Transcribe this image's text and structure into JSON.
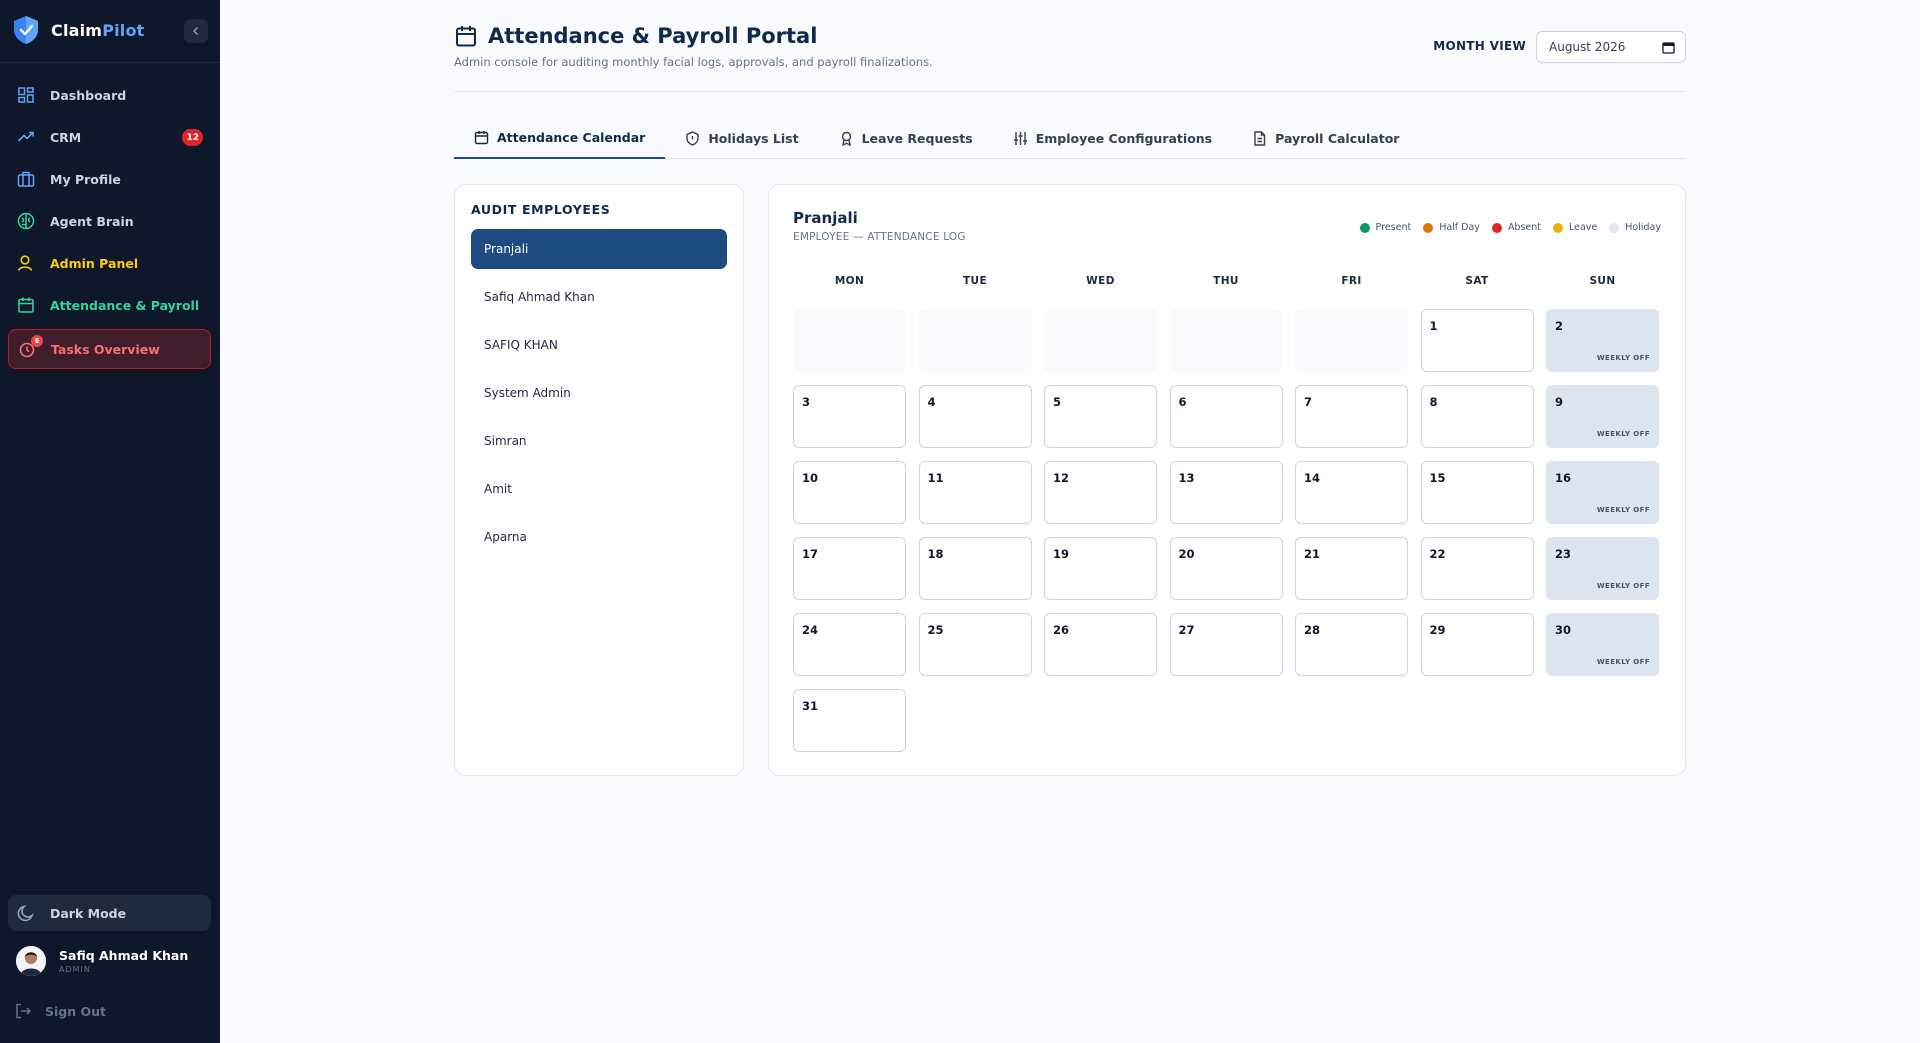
{
  "brand": {
    "name_part1": "Claim",
    "name_part2": "Pilot"
  },
  "sidebar": {
    "items": [
      {
        "label": "Dashboard",
        "icon": "grid-icon"
      },
      {
        "label": "CRM",
        "icon": "trend-icon",
        "badge": "12"
      },
      {
        "label": "My Profile",
        "icon": "briefcase-icon"
      },
      {
        "label": "Agent Brain",
        "icon": "brain-icon"
      },
      {
        "label": "Admin Panel",
        "icon": "user-icon"
      },
      {
        "label": "Attendance & Payroll",
        "icon": "calendar-icon"
      },
      {
        "label": "Tasks Overview",
        "icon": "alarm-icon",
        "badge": "6"
      }
    ],
    "dark_mode_label": "Dark Mode",
    "user": {
      "name": "Safiq Ahmad Khan",
      "role": "ADMIN"
    },
    "signout_label": "Sign Out"
  },
  "header": {
    "title": "Attendance & Payroll Portal",
    "subtitle": "Admin console for auditing monthly facial logs, approvals, and payroll finalizations.",
    "month_view_label": "MONTH VIEW",
    "month_value": "August 2026"
  },
  "tabs": [
    {
      "label": "Attendance Calendar",
      "icon": "calendar-icon"
    },
    {
      "label": "Holidays List",
      "icon": "shield-icon"
    },
    {
      "label": "Leave Requests",
      "icon": "award-icon"
    },
    {
      "label": "Employee Configurations",
      "icon": "sliders-icon"
    },
    {
      "label": "Payroll Calculator",
      "icon": "document-icon"
    }
  ],
  "employees": {
    "heading": "AUDIT EMPLOYEES",
    "list": [
      "Pranjali",
      "Safiq Ahmad Khan",
      "SAFIQ KHAN",
      "System Admin",
      "Simran",
      "Amit",
      "Aparna"
    ],
    "selected": "Pranjali"
  },
  "calendar": {
    "employee_name": "Pranjali",
    "subtitle": "EMPLOYEE — ATTENDANCE LOG",
    "legend": [
      {
        "label": "Present",
        "color": "#059669"
      },
      {
        "label": "Half Day",
        "color": "#d97706"
      },
      {
        "label": "Absent",
        "color": "#dc2626"
      },
      {
        "label": "Leave",
        "color": "#eab308"
      },
      {
        "label": "Holiday",
        "color": "#e2e8f0"
      }
    ],
    "weekdays": [
      "MON",
      "TUE",
      "WED",
      "THU",
      "FRI",
      "SAT",
      "SUN"
    ],
    "weekly_off_label": "WEEKLY OFF",
    "days": [
      "1",
      "2",
      "3",
      "4",
      "5",
      "6",
      "7",
      "8",
      "9",
      "10",
      "11",
      "12",
      "13",
      "14",
      "15",
      "16",
      "17",
      "18",
      "19",
      "20",
      "21",
      "22",
      "23",
      "24",
      "25",
      "26",
      "27",
      "28",
      "29",
      "30",
      "31"
    ]
  }
}
